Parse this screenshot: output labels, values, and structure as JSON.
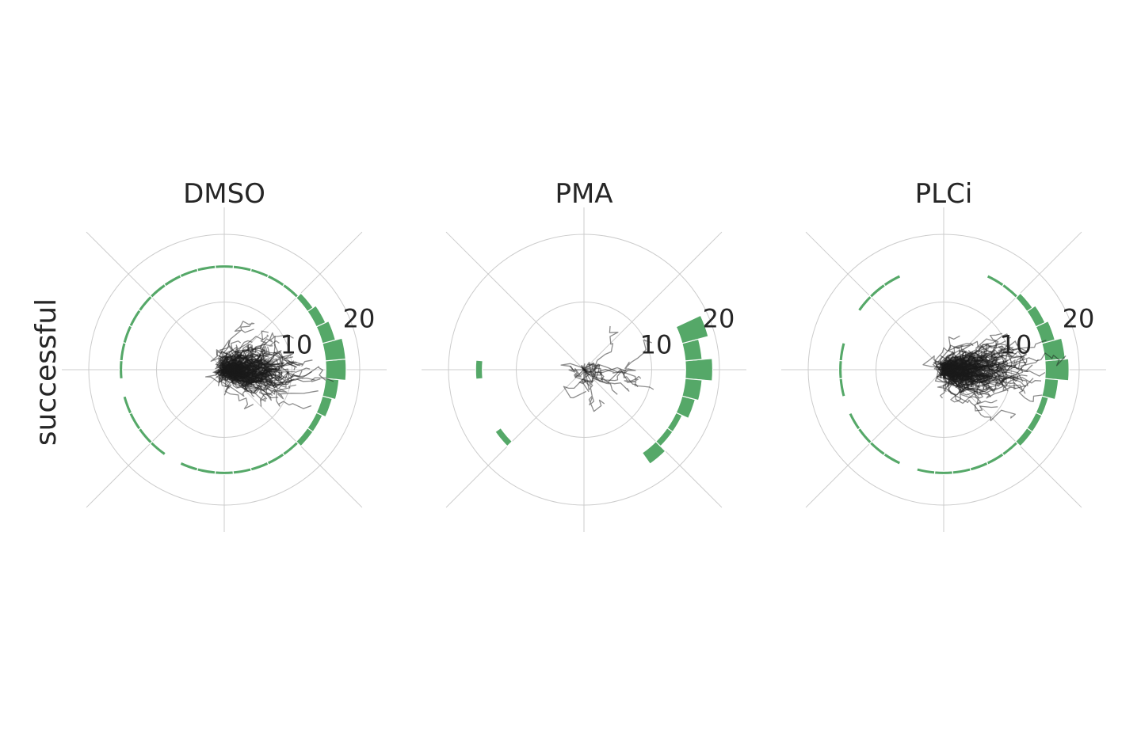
{
  "figure": {
    "row_label": "successful",
    "colors": {
      "bars": "#55a868",
      "tracks": "#1a1a1a",
      "grid": "#cccccc",
      "text": "#262626"
    }
  },
  "chart_data": [
    {
      "type": "polar-histogram",
      "title": "DMSO",
      "r_ticks": [
        10,
        20
      ],
      "r_max": 20,
      "grid": true,
      "bins": 36,
      "hist_inner_radius": 15,
      "hist_counts": [
        6,
        6,
        4,
        3,
        2,
        1,
        1,
        1,
        1,
        1,
        1,
        1,
        1,
        1,
        1,
        1,
        1,
        1,
        1,
        0,
        1,
        1,
        1,
        1,
        0,
        1,
        1,
        1,
        1,
        1,
        1,
        1,
        2,
        2,
        3,
        4
      ],
      "tracks_count": 180,
      "tracks_seed": 11,
      "tracks_bias": 0.75,
      "tracks_spread": 7
    },
    {
      "type": "polar-histogram",
      "title": "PMA",
      "r_ticks": [
        10,
        20
      ],
      "r_max": 20,
      "grid": true,
      "bins": 36,
      "hist_inner_radius": 15,
      "hist_counts": [
        8,
        5,
        8,
        0,
        0,
        0,
        0,
        0,
        0,
        0,
        0,
        0,
        0,
        0,
        0,
        0,
        0,
        0,
        2,
        0,
        0,
        0,
        2,
        0,
        0,
        0,
        0,
        0,
        0,
        0,
        0,
        4,
        2,
        2,
        4,
        5
      ],
      "tracks_count": 14,
      "tracks_seed": 5,
      "tracks_bias": 0.55,
      "tracks_spread": 9
    },
    {
      "type": "polar-histogram",
      "title": "PLCi",
      "r_ticks": [
        10,
        20
      ],
      "r_max": 20,
      "grid": true,
      "bins": 36,
      "hist_inner_radius": 15,
      "hist_counts": [
        7,
        6,
        4,
        3,
        2,
        1,
        1,
        0,
        0,
        0,
        0,
        0,
        1,
        1,
        1,
        0,
        0,
        1,
        1,
        1,
        0,
        1,
        1,
        1,
        1,
        0,
        1,
        1,
        1,
        1,
        1,
        1,
        2,
        2,
        2,
        4
      ],
      "tracks_count": 170,
      "tracks_seed": 23,
      "tracks_bias": 0.8,
      "tracks_spread": 7
    }
  ]
}
